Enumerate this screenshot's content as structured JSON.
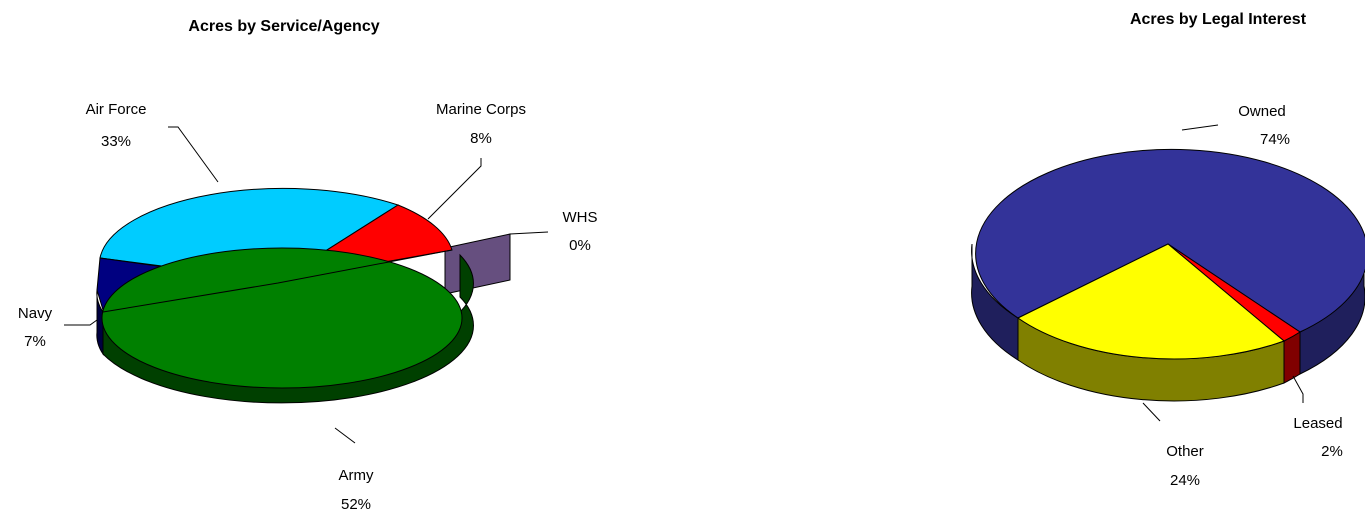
{
  "chart_data": [
    {
      "type": "pie",
      "title": "Acres by Service/Agency",
      "slices": [
        {
          "name": "Air Force",
          "pct_label": "33%",
          "value": 33,
          "color": "#00ccff",
          "side": "#0099cc"
        },
        {
          "name": "Marine Corps",
          "pct_label": "8%",
          "value": 8,
          "color": "#ff0000",
          "side": "#990000"
        },
        {
          "name": "WHS",
          "pct_label": "0%",
          "value": 0,
          "color": "#664f7f",
          "side": "#3c2c4e"
        },
        {
          "name": "Army",
          "pct_label": "52%",
          "value": 52,
          "color": "#008000",
          "side": "#004000"
        },
        {
          "name": "Navy",
          "pct_label": "7%",
          "value": 7,
          "color": "#000080",
          "side": "#000040"
        }
      ]
    },
    {
      "type": "pie",
      "title": "Acres by Legal Interest",
      "slices": [
        {
          "name": "Owned",
          "pct_label": "74%",
          "value": 74,
          "color": "#333399",
          "side": "#1f1f5c"
        },
        {
          "name": "Leased",
          "pct_label": "2%",
          "value": 2,
          "color": "#ff0000",
          "side": "#800000"
        },
        {
          "name": "Other",
          "pct_label": "24%",
          "value": 24,
          "color": "#ffff00",
          "side": "#808000"
        }
      ]
    }
  ]
}
